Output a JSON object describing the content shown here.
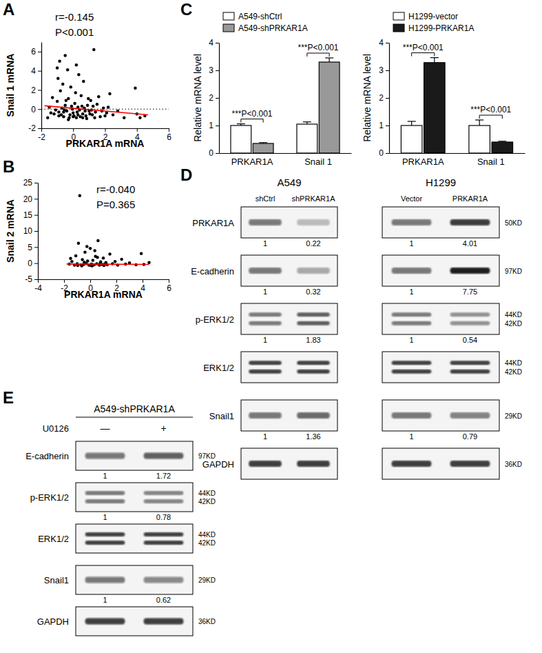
{
  "chart_data": [
    {
      "type": "scatter",
      "panel": "A",
      "xlabel": "PRKAR1A mRNA",
      "ylabel": "Snail 1 mRNA",
      "annotations": [
        "r=-0.145",
        "P<0.001"
      ],
      "xlim": [
        -2,
        6
      ],
      "xticks": [
        -2,
        0,
        2,
        4,
        6
      ],
      "ylim": [
        -2,
        7
      ],
      "yticks": [
        -2,
        0,
        2,
        4,
        6
      ],
      "series": [
        {
          "type": "scatter",
          "color": "#000000",
          "marker": "circle",
          "x": [
            -1.5,
            -1.2,
            -1.0,
            -0.9,
            -0.8,
            -0.7,
            -0.6,
            -0.5,
            -0.4,
            -0.3,
            -0.2,
            -0.1,
            0,
            0.1,
            0.2,
            0.3,
            0.4,
            0.5,
            0.6,
            0.7,
            0.8,
            0.9,
            1.0,
            1.1,
            1.2,
            1.3,
            1.4,
            1.5,
            1.7,
            1.9,
            2.1,
            2.3,
            2.5,
            2.8,
            3.2,
            3.9,
            4.0,
            4.2,
            4.5,
            -1.6,
            -1.3,
            -1.1,
            -0.95,
            -0.85,
            -0.75,
            -0.65,
            -0.55,
            -0.45,
            -0.35,
            -0.25,
            -0.15,
            -0.05,
            0.05,
            0.15,
            0.25,
            0.35,
            0.45,
            0.55,
            0.65,
            0.75,
            0.85,
            0.95,
            1.05,
            1.15,
            1.25,
            1.35,
            1.6,
            1.8,
            2.0,
            2.2,
            -1.4,
            -0.9,
            -0.6,
            0.0,
            0.3,
            0.6,
            -1.0,
            -0.5,
            0.2,
            -0.3
          ],
          "values": [
            0.2,
            -0.5,
            0.8,
            -0.3,
            1.9,
            0.1,
            -0.8,
            0.4,
            -0.2,
            1.1,
            -0.6,
            0.3,
            -0.4,
            0.6,
            -0.9,
            0.2,
            -0.1,
            1.4,
            -0.5,
            0.1,
            -0.7,
            0.4,
            -0.2,
            0.9,
            -0.6,
            6.2,
            -0.3,
            0.5,
            -0.8,
            0.1,
            -0.4,
            1.6,
            -0.6,
            -0.2,
            -0.9,
            2.2,
            -0.5,
            -0.9,
            -0.7,
            -0.9,
            1.2,
            -0.1,
            3.2,
            5.0,
            -0.6,
            2.6,
            -0.1,
            0.9,
            4.1,
            -0.9,
            2.3,
            0.0,
            -0.7,
            1.7,
            -0.3,
            3.6,
            -0.8,
            0.3,
            2.9,
            -0.2,
            -1.0,
            1.1,
            -0.5,
            -0.1,
            0.3,
            -0.9,
            1.3,
            -0.2,
            -0.7,
            0.2,
            -0.4,
            -0.7,
            -0.3,
            -0.8,
            -0.6,
            -0.9,
            4.3,
            5.6,
            4.6,
            -1.1
          ]
        },
        {
          "type": "line",
          "color": "#ff0000",
          "line_style": "solid",
          "x": [
            -1.8,
            4.7
          ],
          "values": [
            0.35,
            -0.6
          ]
        },
        {
          "type": "line",
          "color": "#000000",
          "line_style": "dotted",
          "x": [
            -2,
            6
          ],
          "values": [
            0,
            0
          ]
        }
      ]
    },
    {
      "type": "scatter",
      "panel": "B",
      "xlabel": "PRKAR1A mRNA",
      "ylabel": "Snail 2 mRNA",
      "annotations": [
        "r=-0.040",
        "P=0.365"
      ],
      "xlim": [
        -4,
        6
      ],
      "xticks": [
        -4,
        -2,
        0,
        2,
        4,
        6
      ],
      "ylim": [
        -5,
        25
      ],
      "yticks": [
        -5,
        0,
        5,
        10,
        15,
        20,
        25
      ],
      "series": [
        {
          "type": "scatter",
          "color": "#000000",
          "marker": "circle",
          "x": [
            -1.6,
            -1.4,
            -1.2,
            -1.1,
            -1.0,
            -0.9,
            -0.8,
            -0.7,
            -0.6,
            -0.5,
            -0.4,
            -0.3,
            -0.2,
            -0.1,
            0,
            0.1,
            0.2,
            0.3,
            0.4,
            0.5,
            0.6,
            0.7,
            0.8,
            0.9,
            1.0,
            1.1,
            1.2,
            1.3,
            1.5,
            1.7,
            1.9,
            2.1,
            2.4,
            2.7,
            3.0,
            3.5,
            3.9,
            4.1,
            4.5,
            -1.5,
            -0.95,
            -0.45,
            0.05,
            0.55,
            1.05,
            -0.25,
            0.35,
            -0.65,
            0.15,
            0.75
          ],
          "values": [
            -0.3,
            0.5,
            -0.6,
            2.3,
            -0.2,
            6.2,
            21,
            -0.5,
            1.1,
            -0.4,
            3.4,
            -0.1,
            0.7,
            -0.6,
            4.6,
            -0.3,
            0.9,
            -0.5,
            2.1,
            -0.2,
            7.0,
            -0.6,
            0.4,
            -0.4,
            1.6,
            -0.3,
            0.2,
            -0.5,
            2.8,
            -0.2,
            0.5,
            -0.6,
            1.2,
            -0.3,
            0.1,
            -0.5,
            3.0,
            -0.4,
            0.2,
            1.5,
            -0.7,
            0.3,
            -0.7,
            1.8,
            -0.7,
            5.2,
            3.9,
            -0.8,
            -0.8,
            -0.1
          ]
        },
        {
          "type": "line",
          "color": "#ff0000",
          "line_style": "solid",
          "x": [
            -1.8,
            4.5
          ],
          "values": [
            -0.25,
            -0.4
          ]
        }
      ]
    },
    {
      "type": "bar",
      "panel": "C",
      "ylabel": "Relative mRNA level",
      "legend": "top-left",
      "categories": [
        "PRKAR1A",
        "Snail 1"
      ],
      "annotations": [
        "***P<0.001",
        "***P<0.001"
      ],
      "ylim": [
        0,
        4
      ],
      "yticks": [
        0,
        1,
        2,
        3,
        4
      ],
      "series": [
        {
          "name": "A549-shCtrl",
          "color": "#ffffff",
          "values": [
            1.0,
            1.05
          ],
          "errors": [
            0.06,
            0.08
          ]
        },
        {
          "name": "A549-shPRKAR1A",
          "color": "#999999",
          "values": [
            0.35,
            3.3
          ],
          "errors": [
            0.03,
            0.15
          ]
        }
      ]
    },
    {
      "type": "bar",
      "ylabel": "Relative mRNA level",
      "legend": "top-left",
      "categories": [
        "PRKAR1A",
        "Snail 1"
      ],
      "annotations": [
        "***P<0.001",
        "***P<0.001"
      ],
      "ylim": [
        0,
        4
      ],
      "yticks": [
        0,
        1,
        2,
        3,
        4
      ],
      "series": [
        {
          "name": "H1299-vector",
          "color": "#ffffff",
          "values": [
            1.0,
            1.0
          ],
          "errors": [
            0.15,
            0.2
          ]
        },
        {
          "name": "H1299-PRKAR1A",
          "color": "#1a1a1a",
          "values": [
            3.28,
            0.4
          ],
          "errors": [
            0.18,
            0.03
          ]
        }
      ]
    }
  ],
  "blots": [
    {
      "panel": "D",
      "groups": [
        {
          "name": "A549",
          "lanes": [
            "shCtrl",
            "shPRKAR1A"
          ]
        },
        {
          "name": "H1299",
          "lanes": [
            "Vector",
            "PRKAR1A"
          ]
        }
      ],
      "rows": [
        {
          "label": "PRKAR1A",
          "sizes": [
            "50KD"
          ],
          "values": [
            [
              1,
              0.22
            ],
            [
              1,
              4.01
            ]
          ]
        },
        {
          "label": "E-cadherin",
          "sizes": [
            "97KD"
          ],
          "values": [
            [
              1,
              0.32
            ],
            [
              1,
              7.75
            ]
          ]
        },
        {
          "label": "p-ERK1/2",
          "sizes": [
            "44KD",
            "42KD"
          ],
          "values": [
            [
              1,
              1.83
            ],
            [
              1,
              0.54
            ]
          ]
        },
        {
          "label": "ERK1/2",
          "sizes": [
            "44KD",
            "42KD"
          ]
        },
        {
          "label": "Snail1",
          "sizes": [
            "29KD"
          ],
          "values": [
            [
              1,
              1.36
            ],
            [
              1,
              0.79
            ]
          ]
        },
        {
          "label": "GAPDH",
          "sizes": [
            "36KD"
          ]
        }
      ]
    },
    {
      "panel": "E",
      "title": "A549-shPRKAR1A",
      "treatment": "U0126",
      "lanes": [
        "—",
        "+"
      ],
      "rows": [
        {
          "label": "E-cadherin",
          "sizes": [
            "97KD"
          ],
          "values": [
            1,
            1.72
          ]
        },
        {
          "label": "p-ERK1/2",
          "sizes": [
            "44KD",
            "42KD"
          ],
          "values": [
            1,
            0.78
          ]
        },
        {
          "label": "ERK1/2",
          "sizes": [
            "44KD",
            "42KD"
          ]
        },
        {
          "label": "Snail1",
          "sizes": [
            "29KD"
          ],
          "values": [
            1,
            0.62
          ]
        },
        {
          "label": "GAPDH",
          "sizes": [
            "36KD"
          ]
        }
      ]
    }
  ]
}
